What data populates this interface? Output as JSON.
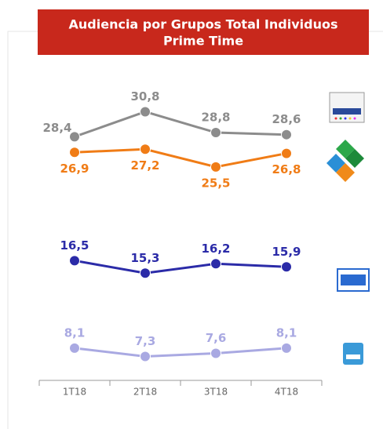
{
  "chart_data": {
    "type": "line",
    "title": [
      "Audiencia  por Grupos Total Individuos",
      "Prime Time"
    ],
    "categories": [
      "1T18",
      "2T18",
      "3T18",
      "4T18"
    ],
    "ylim": [
      5,
      34
    ],
    "series": [
      {
        "color": "#8c8c8c",
        "values": [
          28.4,
          30.8,
          28.8,
          28.6
        ],
        "value_labels": [
          "28,4",
          "30,8",
          "28,8",
          "28,6"
        ]
      },
      {
        "color": "#f07c16",
        "values": [
          26.9,
          27.2,
          25.5,
          26.8
        ],
        "value_labels": [
          "26,9",
          "27,2",
          "25,5",
          "26,8"
        ]
      },
      {
        "color": "#2b2ba8",
        "values": [
          16.5,
          15.3,
          16.2,
          15.9
        ],
        "value_labels": [
          "16,5",
          "15,3",
          "16,2",
          "15,9"
        ]
      },
      {
        "color": "#a9a9e2",
        "values": [
          8.1,
          7.3,
          7.6,
          8.1
        ],
        "value_labels": [
          "8,1",
          "7,3",
          "7,6",
          "8,1"
        ]
      }
    ]
  }
}
